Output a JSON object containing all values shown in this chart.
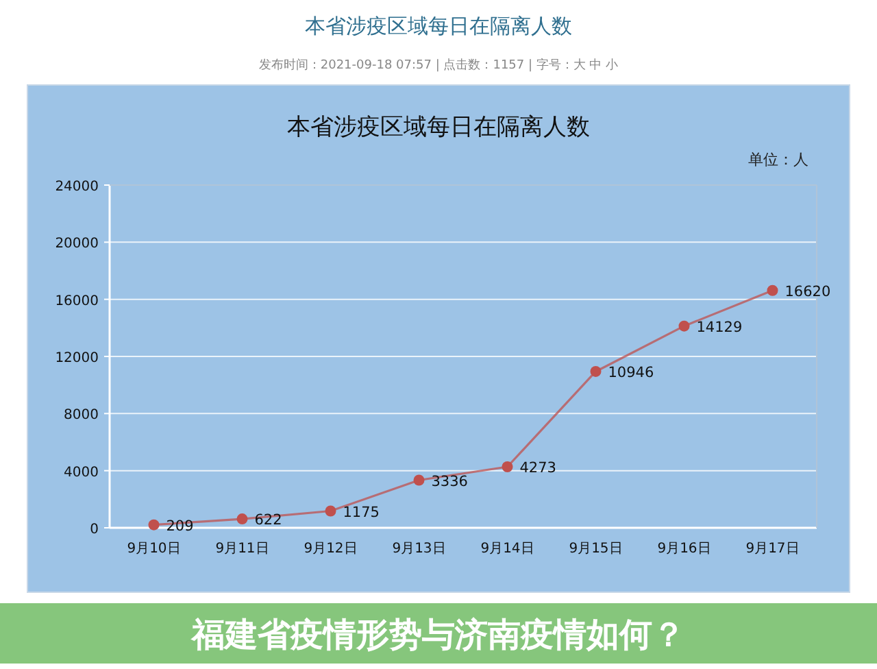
{
  "chart_data": {
    "type": "line",
    "title": "本省涉疫区域每日在隔离人数",
    "annotations": [
      "本省涉疫区域每日在隔离人数",
      "发布时间：2021-09-18 07:57 | 点击数：1157 | 字号：大 中 小",
      "单位：人",
      "福建省疫情形势与济南疫情如何？"
    ],
    "categories": [
      "9月10日",
      "9月11日",
      "9月12日",
      "9月13日",
      "9月14日",
      "9月15日",
      "9月16日",
      "9月17日"
    ],
    "series": [
      {
        "color": "#c0504d",
        "values": [
          209,
          622,
          1175,
          3336,
          4273,
          10946,
          14129,
          16620
        ]
      }
    ],
    "ylim": [
      0,
      24000
    ],
    "yticks": [
      0,
      4000,
      8000,
      12000,
      16000,
      20000,
      24000
    ],
    "grid": "y",
    "marker": "circle",
    "line_style": "solid",
    "data_labels": true
  }
}
